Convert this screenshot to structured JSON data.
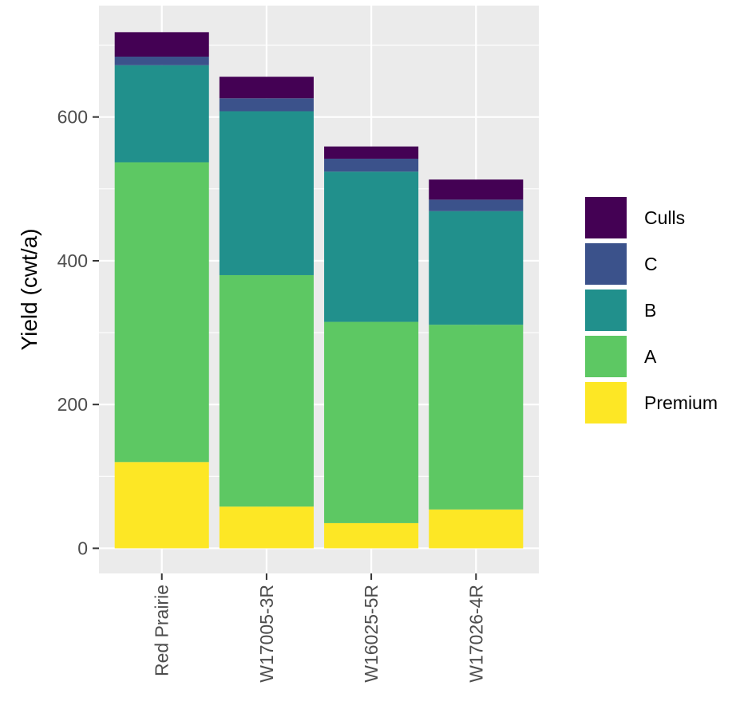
{
  "chart_data": {
    "type": "bar",
    "stacked": true,
    "categories": [
      "Red Prairie",
      "W17005-3R",
      "W16025-5R",
      "W17026-4R"
    ],
    "series": [
      {
        "name": "Premium",
        "color": "#FDE725",
        "values": [
          120,
          58,
          35,
          54
        ]
      },
      {
        "name": "A",
        "color": "#5DC863",
        "values": [
          417,
          322,
          280,
          257
        ]
      },
      {
        "name": "B",
        "color": "#21908C",
        "values": [
          135,
          228,
          209,
          158
        ]
      },
      {
        "name": "C",
        "color": "#3B528B",
        "values": [
          12,
          18,
          18,
          16
        ]
      },
      {
        "name": "Culls",
        "color": "#440154",
        "values": [
          34,
          30,
          17,
          28
        ]
      }
    ],
    "title": "",
    "xlabel": "",
    "ylabel": "Yield (cwt/a)",
    "ylim": [
      -35,
      755
    ],
    "yticks": [
      0,
      200,
      400,
      600
    ],
    "grid": true,
    "legend_position": "right",
    "panel_background": "#EBEBEB",
    "gridline_color": "#FFFFFF"
  }
}
